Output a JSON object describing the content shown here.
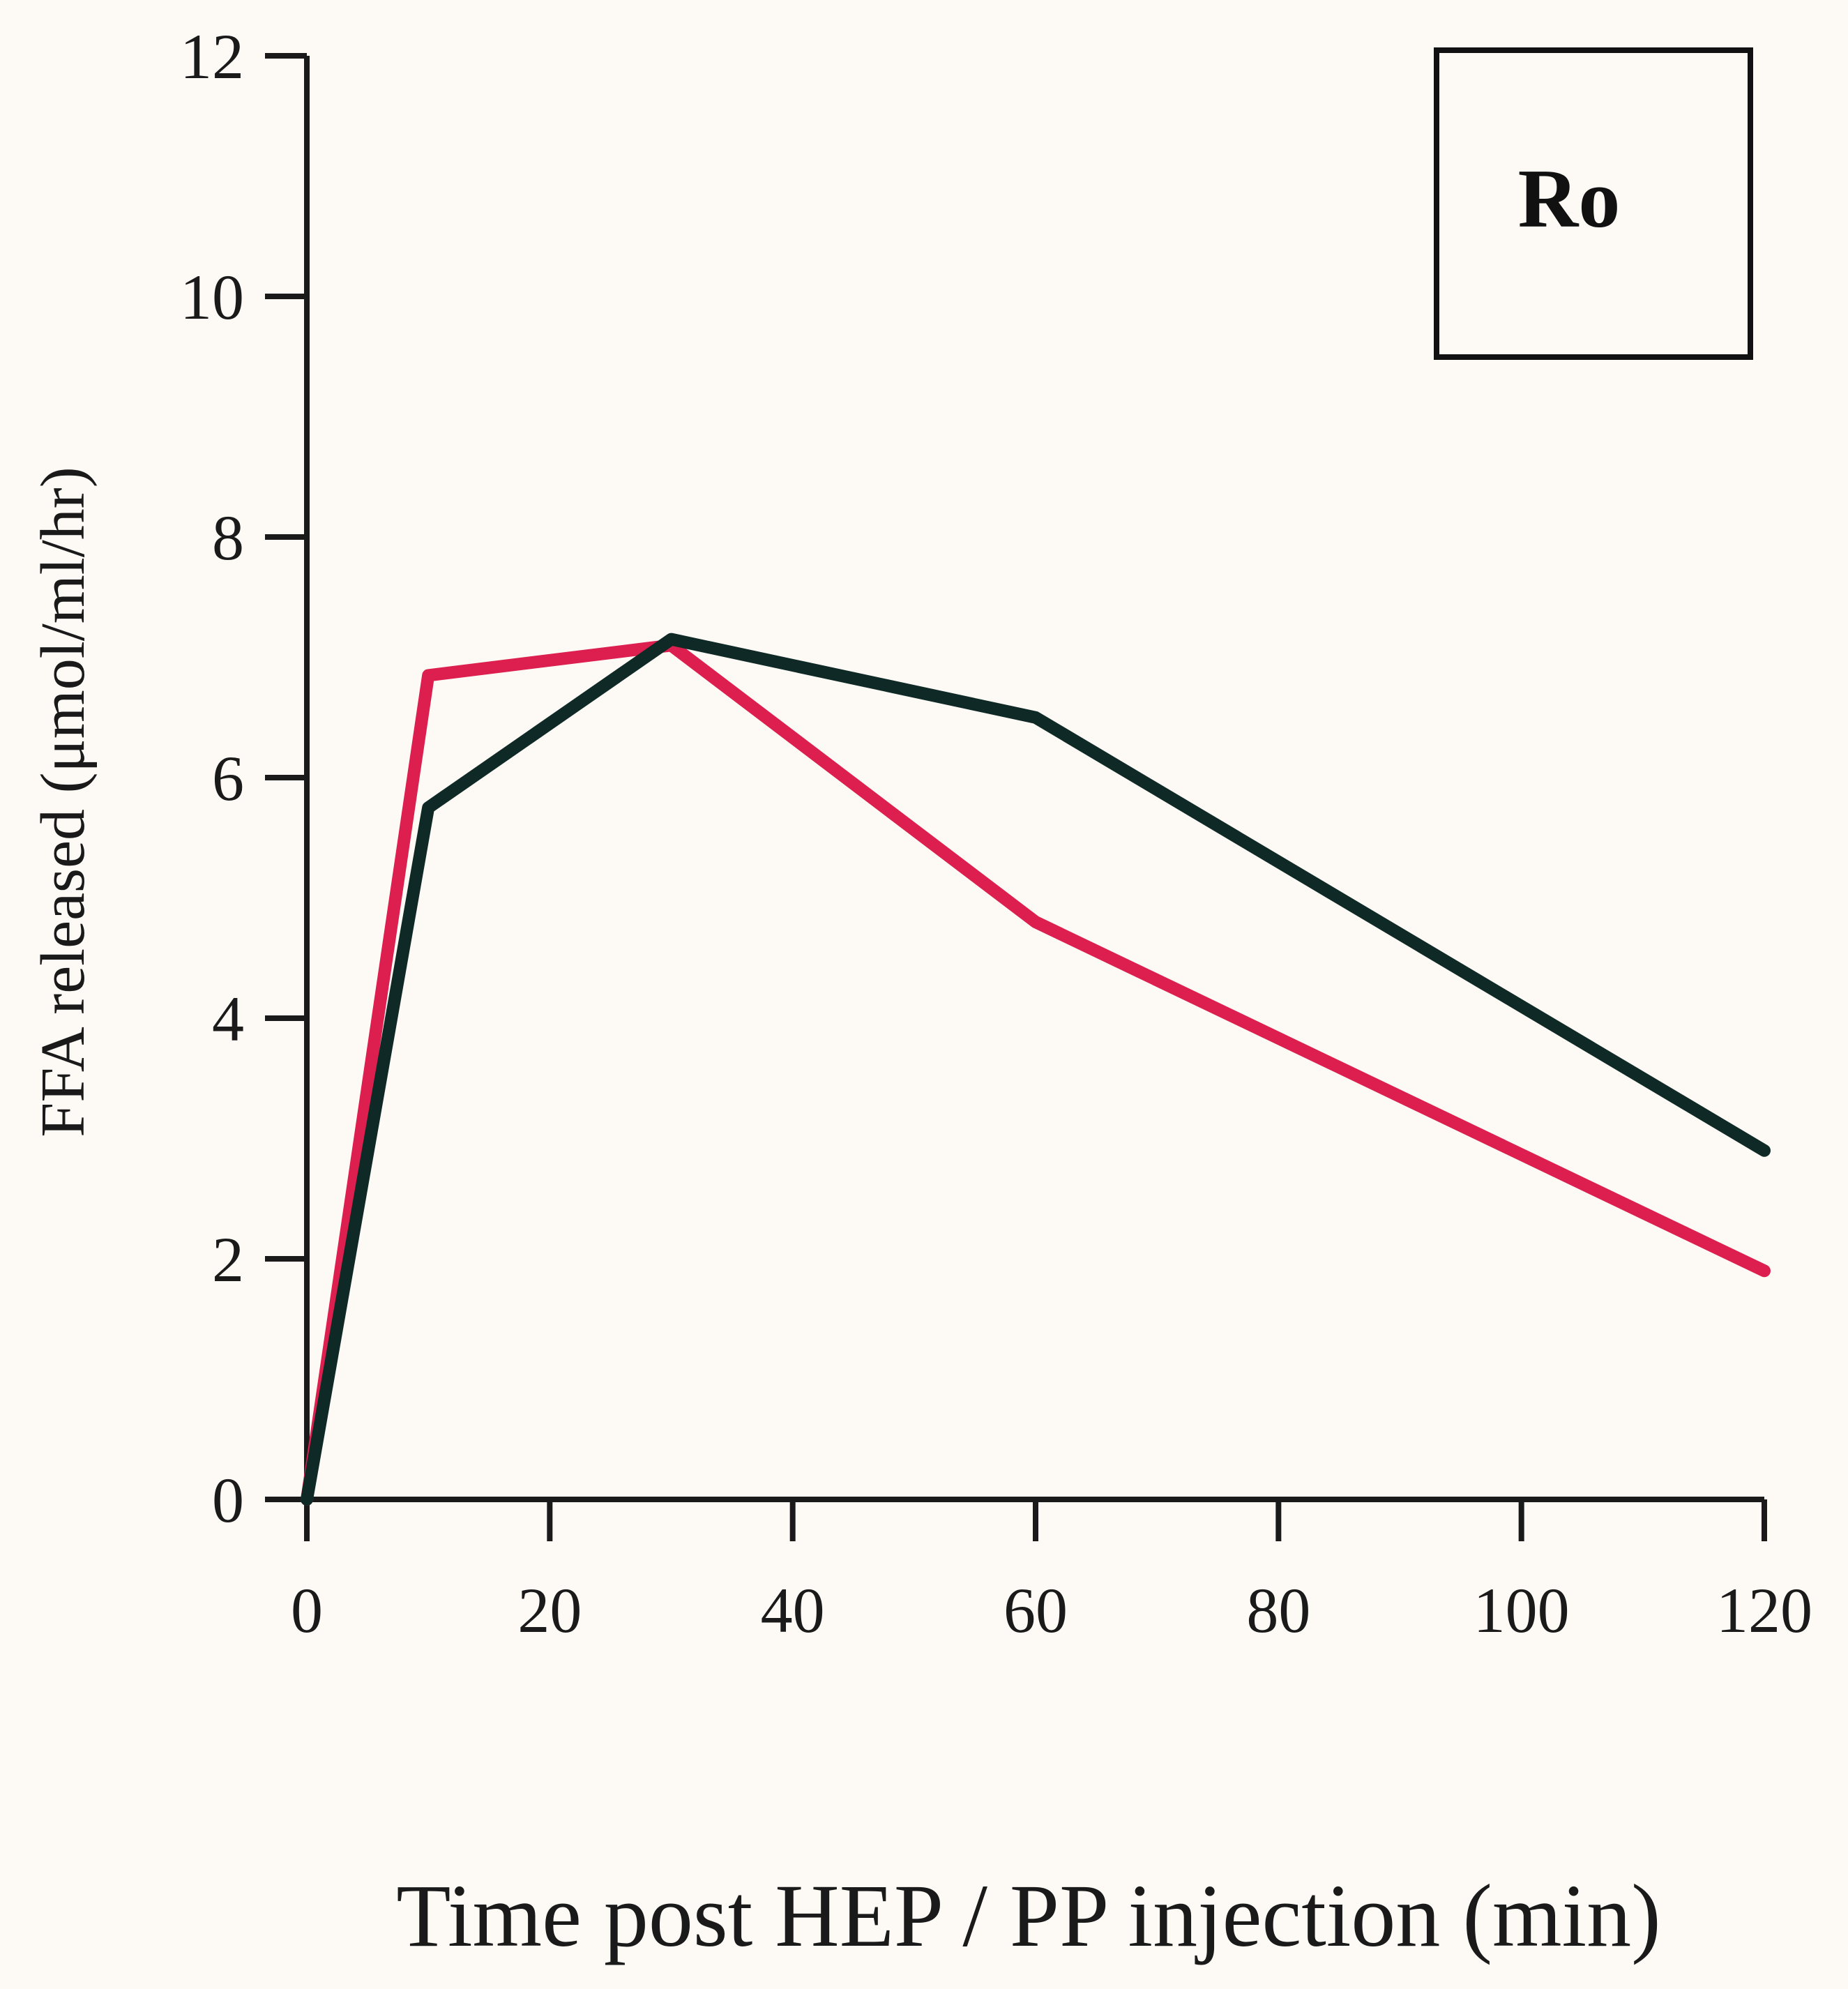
{
  "chart_data": {
    "type": "line",
    "title": "",
    "panel_label": "Ro",
    "xlabel": "Time post HEP / PP injection  (min)",
    "ylabel": "FFA released (μmol/ml/hr)",
    "xlim": [
      0,
      120
    ],
    "ylim": [
      0,
      12
    ],
    "xticks": [
      0,
      20,
      40,
      60,
      80,
      100,
      120
    ],
    "yticks": [
      0,
      2,
      4,
      6,
      8,
      10,
      12
    ],
    "grid": false,
    "series": [
      {
        "color": "#dc1f4e",
        "x": [
          0,
          10,
          30,
          60,
          120
        ],
        "y": [
          0,
          6.85,
          7.1,
          4.8,
          1.9
        ]
      },
      {
        "color": "#0f2a26",
        "x": [
          0,
          10,
          30,
          60,
          120
        ],
        "y": [
          0,
          5.75,
          7.15,
          6.5,
          2.9
        ]
      }
    ]
  }
}
